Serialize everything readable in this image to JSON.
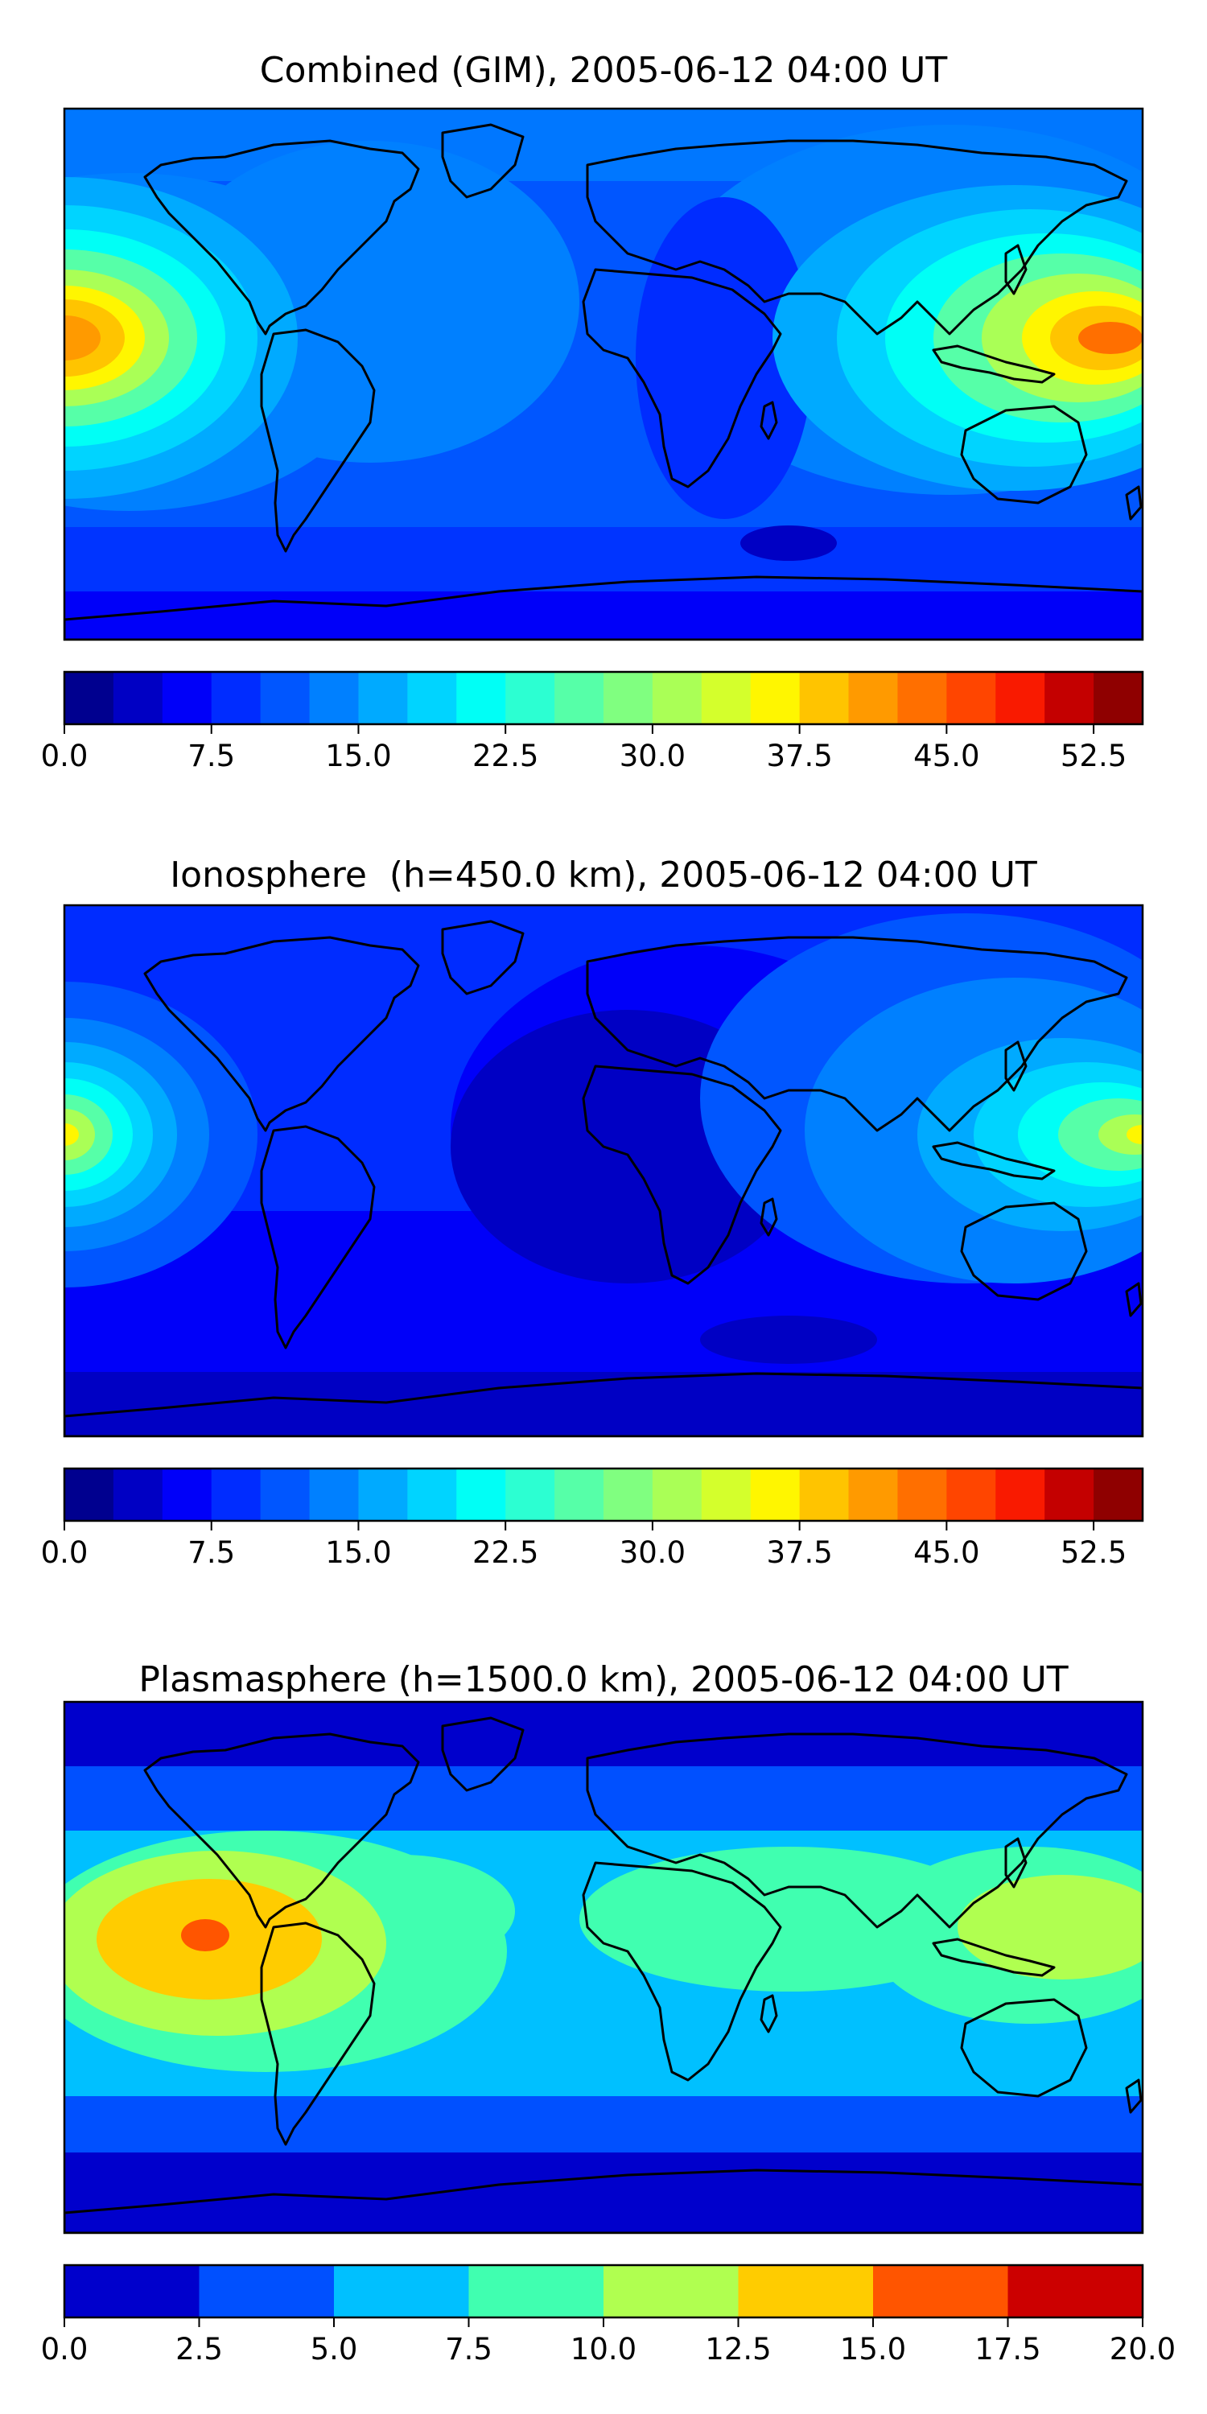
{
  "panels": [
    {
      "title": "Combined (GIM), 2005-06-12 04:00 UT",
      "colorbar": {
        "tick_labels": [
          "0.0",
          "7.5",
          "15.0",
          "22.5",
          "30.0",
          "37.5",
          "45.0",
          "52.5"
        ],
        "ticks": [
          0,
          7.5,
          15,
          22.5,
          30,
          37.5,
          45,
          52.5
        ],
        "range": [
          0,
          55
        ],
        "levels": 22,
        "colors": [
          "#00008f",
          "#0000c4",
          "#0000f9",
          "#002cff",
          "#0056ff",
          "#0080ff",
          "#00aaff",
          "#00d4ff",
          "#00fff6",
          "#2cffd2",
          "#56ffa8",
          "#80ff80",
          "#aaff56",
          "#d4ff2c",
          "#fff600",
          "#ffc400",
          "#ff9a00",
          "#ff6f00",
          "#ff4500",
          "#f91a00",
          "#c40000",
          "#8f0000"
        ]
      }
    },
    {
      "title": "Ionosphere  (h=450.0 km), 2005-06-12 04:00 UT",
      "colorbar": {
        "tick_labels": [
          "0.0",
          "7.5",
          "15.0",
          "22.5",
          "30.0",
          "37.5",
          "45.0",
          "52.5"
        ],
        "ticks": [
          0,
          7.5,
          15,
          22.5,
          30,
          37.5,
          45,
          52.5
        ],
        "range": [
          0,
          55
        ],
        "levels": 22,
        "colors": [
          "#00008f",
          "#0000c4",
          "#0000f9",
          "#002cff",
          "#0056ff",
          "#0080ff",
          "#00aaff",
          "#00d4ff",
          "#00fff6",
          "#2cffd2",
          "#56ffa8",
          "#80ff80",
          "#aaff56",
          "#d4ff2c",
          "#fff600",
          "#ffc400",
          "#ff9a00",
          "#ff6f00",
          "#ff4500",
          "#f91a00",
          "#c40000",
          "#8f0000"
        ]
      }
    },
    {
      "title": "Plasmasphere (h=1500.0 km), 2005-06-12 04:00 UT",
      "colorbar": {
        "tick_labels": [
          "0.0",
          "2.5",
          "5.0",
          "7.5",
          "10.0",
          "12.5",
          "15.0",
          "17.5",
          "20.0"
        ],
        "ticks": [
          0,
          2.5,
          5,
          7.5,
          10,
          12.5,
          15,
          17.5,
          20
        ],
        "range": [
          0,
          20
        ],
        "levels": 8,
        "colors": [
          "#0000cc",
          "#0050ff",
          "#00c0ff",
          "#40ffb0",
          "#b0ff50",
          "#ffcc00",
          "#ff5500",
          "#cc0000"
        ]
      }
    }
  ]
}
